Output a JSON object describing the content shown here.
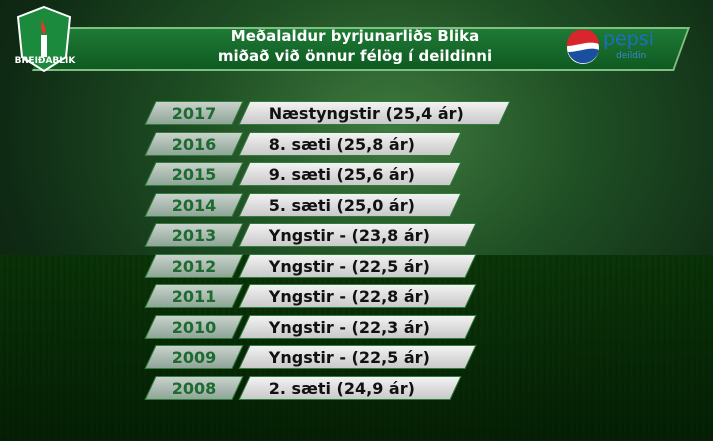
{
  "header": {
    "title_lines": [
      "Meðalaldur byrjunarliðs Blika",
      "miðað við önnur félög í deildinni"
    ],
    "logo": "BREIÐABLIK",
    "sponsor": {
      "name": "pepsi",
      "sub": "deildin"
    }
  },
  "rows": [
    {
      "year": "2017",
      "text": "Næstyngstir (25,4 ár)"
    },
    {
      "year": "2016",
      "text": "8. sæti (25,8 ár)"
    },
    {
      "year": "2015",
      "text": "9. sæti (25,6 ár)"
    },
    {
      "year": "2014",
      "text": "5. sæti (25,0 ár)"
    },
    {
      "year": "2013",
      "text": "Yngstir - (23,8 ár)"
    },
    {
      "year": "2012",
      "text": "Yngstir - (22,5 ár)"
    },
    {
      "year": "2011",
      "text": "Yngstir - (22,8 ár)"
    },
    {
      "year": "2010",
      "text": "Yngstir - (22,3 ár)"
    },
    {
      "year": "2009",
      "text": "Yngstir - (22,5 ár)"
    },
    {
      "year": "2008",
      "text": "2. sæti (24,9 ár)"
    }
  ]
}
